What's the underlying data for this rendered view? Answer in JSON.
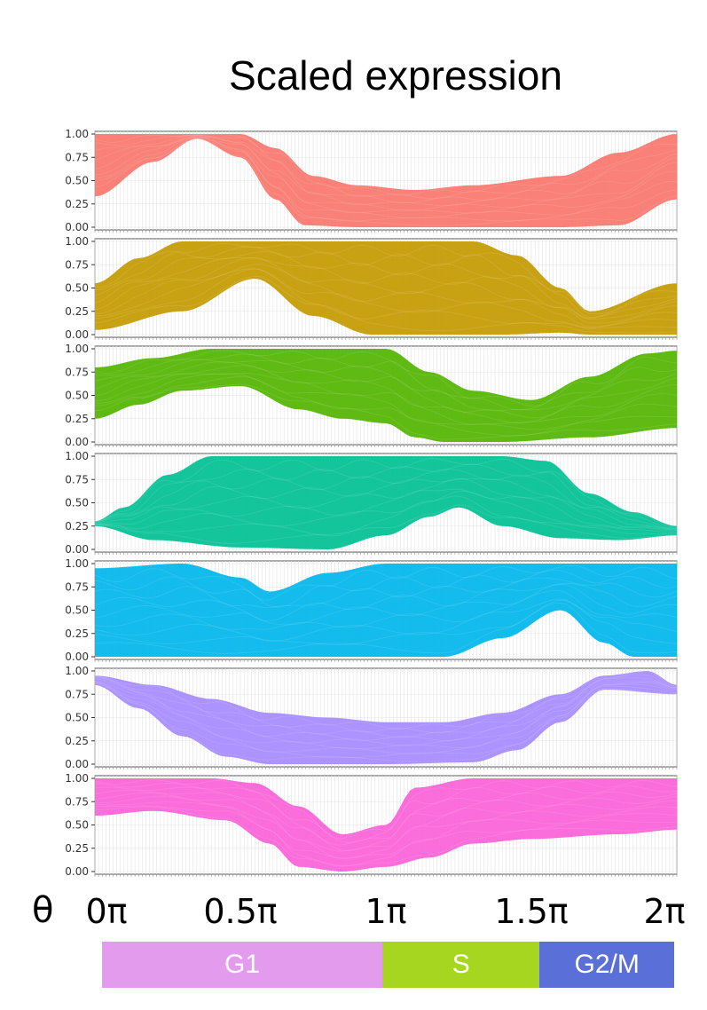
{
  "title": "Scaled expression",
  "x_symbol": "θ",
  "x_ticks": [
    {
      "label": "0π",
      "value": 0
    },
    {
      "label": "0.5π",
      "value": 0.5
    },
    {
      "label": "1π",
      "value": 1
    },
    {
      "label": "1.5π",
      "value": 1.5
    },
    {
      "label": "2π",
      "value": 2
    }
  ],
  "phases": [
    {
      "label": "G1",
      "start": 0,
      "end": 0.98,
      "color": "#e39bed"
    },
    {
      "label": "S",
      "start": 0.98,
      "end": 1.53,
      "color": "#a6d620"
    },
    {
      "label": "G2/M",
      "start": 1.53,
      "end": 2.0,
      "color": "#5b6fd8"
    }
  ],
  "chart_data": {
    "type": "line",
    "x_unit": "π radians",
    "xlim": [
      0,
      2
    ],
    "ylim": [
      0,
      1
    ],
    "y_ticks": [
      "1.00",
      "0.75",
      "0.50",
      "0.25",
      "0.00"
    ],
    "grid": true,
    "legend": "none",
    "panels": [
      {
        "color": "#f8766d",
        "upper": {
          "x": [
            0,
            0.3,
            0.5,
            0.62,
            0.75,
            0.9,
            1.1,
            1.3,
            1.6,
            1.8,
            2.0
          ],
          "y": [
            1,
            1,
            1,
            0.85,
            0.55,
            0.45,
            0.4,
            0.45,
            0.55,
            0.8,
            1
          ]
        },
        "lower": {
          "x": [
            0,
            0.2,
            0.35,
            0.5,
            0.62,
            0.72,
            0.9,
            1.2,
            1.6,
            1.8,
            2.0
          ],
          "y": [
            0.33,
            0.7,
            0.95,
            0.75,
            0.3,
            0.02,
            0,
            0,
            0,
            0.02,
            0.3
          ]
        }
      },
      {
        "color": "#c49a00",
        "upper": {
          "x": [
            0,
            0.15,
            0.3,
            0.5,
            0.8,
            1.0,
            1.3,
            1.45,
            1.6,
            1.7,
            2.0
          ],
          "y": [
            0.55,
            0.82,
            1,
            1,
            1,
            1,
            1,
            0.85,
            0.5,
            0.25,
            0.55
          ]
        },
        "lower": {
          "x": [
            0,
            0.3,
            0.55,
            0.75,
            0.95,
            1.1,
            1.4,
            1.6,
            1.7,
            2.0
          ],
          "y": [
            0.05,
            0.25,
            0.6,
            0.2,
            0,
            0,
            0,
            0.02,
            0,
            0
          ]
        }
      },
      {
        "color": "#53b400",
        "upper": {
          "x": [
            0,
            0.2,
            0.4,
            0.6,
            0.9,
            1.0,
            1.15,
            1.3,
            1.5,
            1.7,
            1.9,
            2.0
          ],
          "y": [
            0.8,
            0.9,
            1,
            1,
            1,
            1,
            0.75,
            0.55,
            0.45,
            0.7,
            0.95,
            0.98
          ]
        },
        "lower": {
          "x": [
            0,
            0.15,
            0.3,
            0.5,
            0.7,
            0.85,
            1.0,
            1.1,
            1.2,
            1.4,
            1.7,
            2.0
          ],
          "y": [
            0.25,
            0.4,
            0.55,
            0.6,
            0.35,
            0.25,
            0.2,
            0.05,
            0,
            0,
            0.05,
            0.15
          ]
        }
      },
      {
        "color": "#00c094",
        "upper": {
          "x": [
            0,
            0.1,
            0.25,
            0.4,
            0.6,
            1.0,
            1.4,
            1.55,
            1.7,
            1.85,
            2.0
          ],
          "y": [
            0.3,
            0.45,
            0.8,
            1,
            1,
            1,
            1,
            0.95,
            0.6,
            0.4,
            0.25
          ]
        },
        "lower": {
          "x": [
            0,
            0.2,
            0.5,
            0.8,
            1.0,
            1.15,
            1.25,
            1.4,
            1.6,
            1.8,
            2.0
          ],
          "y": [
            0.25,
            0.1,
            0.02,
            0,
            0.15,
            0.35,
            0.45,
            0.25,
            0.12,
            0.1,
            0.15
          ]
        }
      },
      {
        "color": "#00b6eb",
        "upper": {
          "x": [
            0,
            0.3,
            0.5,
            0.6,
            0.8,
            1.0,
            1.2,
            1.5,
            1.8,
            2.0
          ],
          "y": [
            0.95,
            1,
            0.85,
            0.7,
            0.9,
            1,
            1,
            1,
            1,
            1
          ]
        },
        "lower": {
          "x": [
            0,
            0.2,
            0.6,
            1.0,
            1.2,
            1.4,
            1.6,
            1.75,
            1.85,
            2.0
          ],
          "y": [
            0,
            0,
            0,
            0,
            0,
            0.2,
            0.5,
            0.15,
            0,
            0
          ]
        }
      },
      {
        "color": "#a58aff",
        "upper": {
          "x": [
            0,
            0.2,
            0.4,
            0.6,
            0.8,
            1.0,
            1.2,
            1.4,
            1.6,
            1.75,
            1.9,
            2.0
          ],
          "y": [
            0.95,
            0.85,
            0.7,
            0.55,
            0.5,
            0.45,
            0.45,
            0.55,
            0.75,
            0.95,
            1,
            0.85
          ]
        },
        "lower": {
          "x": [
            0,
            0.15,
            0.3,
            0.45,
            0.6,
            1.0,
            1.3,
            1.45,
            1.6,
            1.75,
            2.0
          ],
          "y": [
            0.85,
            0.6,
            0.3,
            0.08,
            0,
            0,
            0.02,
            0.15,
            0.45,
            0.8,
            0.75
          ]
        }
      },
      {
        "color": "#fb61d7",
        "upper": {
          "x": [
            0,
            0.2,
            0.4,
            0.55,
            0.7,
            0.85,
            1.0,
            1.1,
            1.3,
            1.5,
            1.8,
            2.0
          ],
          "y": [
            1,
            1,
            1,
            0.95,
            0.7,
            0.4,
            0.5,
            0.9,
            1,
            1,
            1,
            1
          ]
        },
        "lower": {
          "x": [
            0,
            0.2,
            0.45,
            0.6,
            0.7,
            0.85,
            1.0,
            1.15,
            1.3,
            1.5,
            1.8,
            2.0
          ],
          "y": [
            0.6,
            0.65,
            0.55,
            0.3,
            0.05,
            0,
            0.05,
            0.15,
            0.3,
            0.35,
            0.4,
            0.45
          ]
        }
      }
    ]
  }
}
